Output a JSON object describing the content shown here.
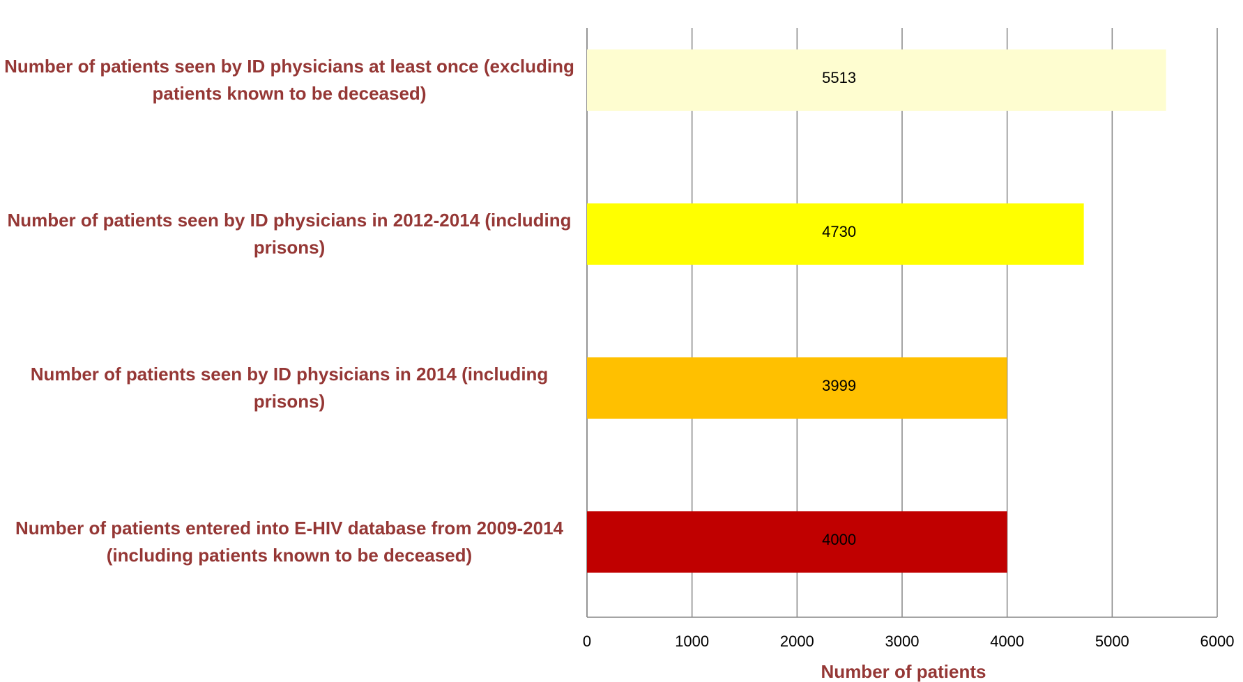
{
  "chart_data": {
    "type": "bar",
    "orientation": "horizontal",
    "categories": [
      "Number of patients seen by ID physicians at least once (excluding patients known to be deceased)",
      "Number of patients seen by ID physicians in 2012-2014 (including prisons)",
      "Number of patients seen by ID physicians in 2014 (including prisons)",
      "Number of patients entered into E-HIV database from 2009-2014 (including patients known to be deceased)"
    ],
    "values": [
      5513,
      4730,
      3999,
      4000
    ],
    "colors": [
      "#fefdd0",
      "#ffff00",
      "#ffc000",
      "#c00000"
    ],
    "xlabel": "Number of patients",
    "xlim": [
      0,
      6000
    ],
    "xticks": [
      0,
      1000,
      2000,
      3000,
      4000,
      5000,
      6000
    ],
    "grid": true
  }
}
